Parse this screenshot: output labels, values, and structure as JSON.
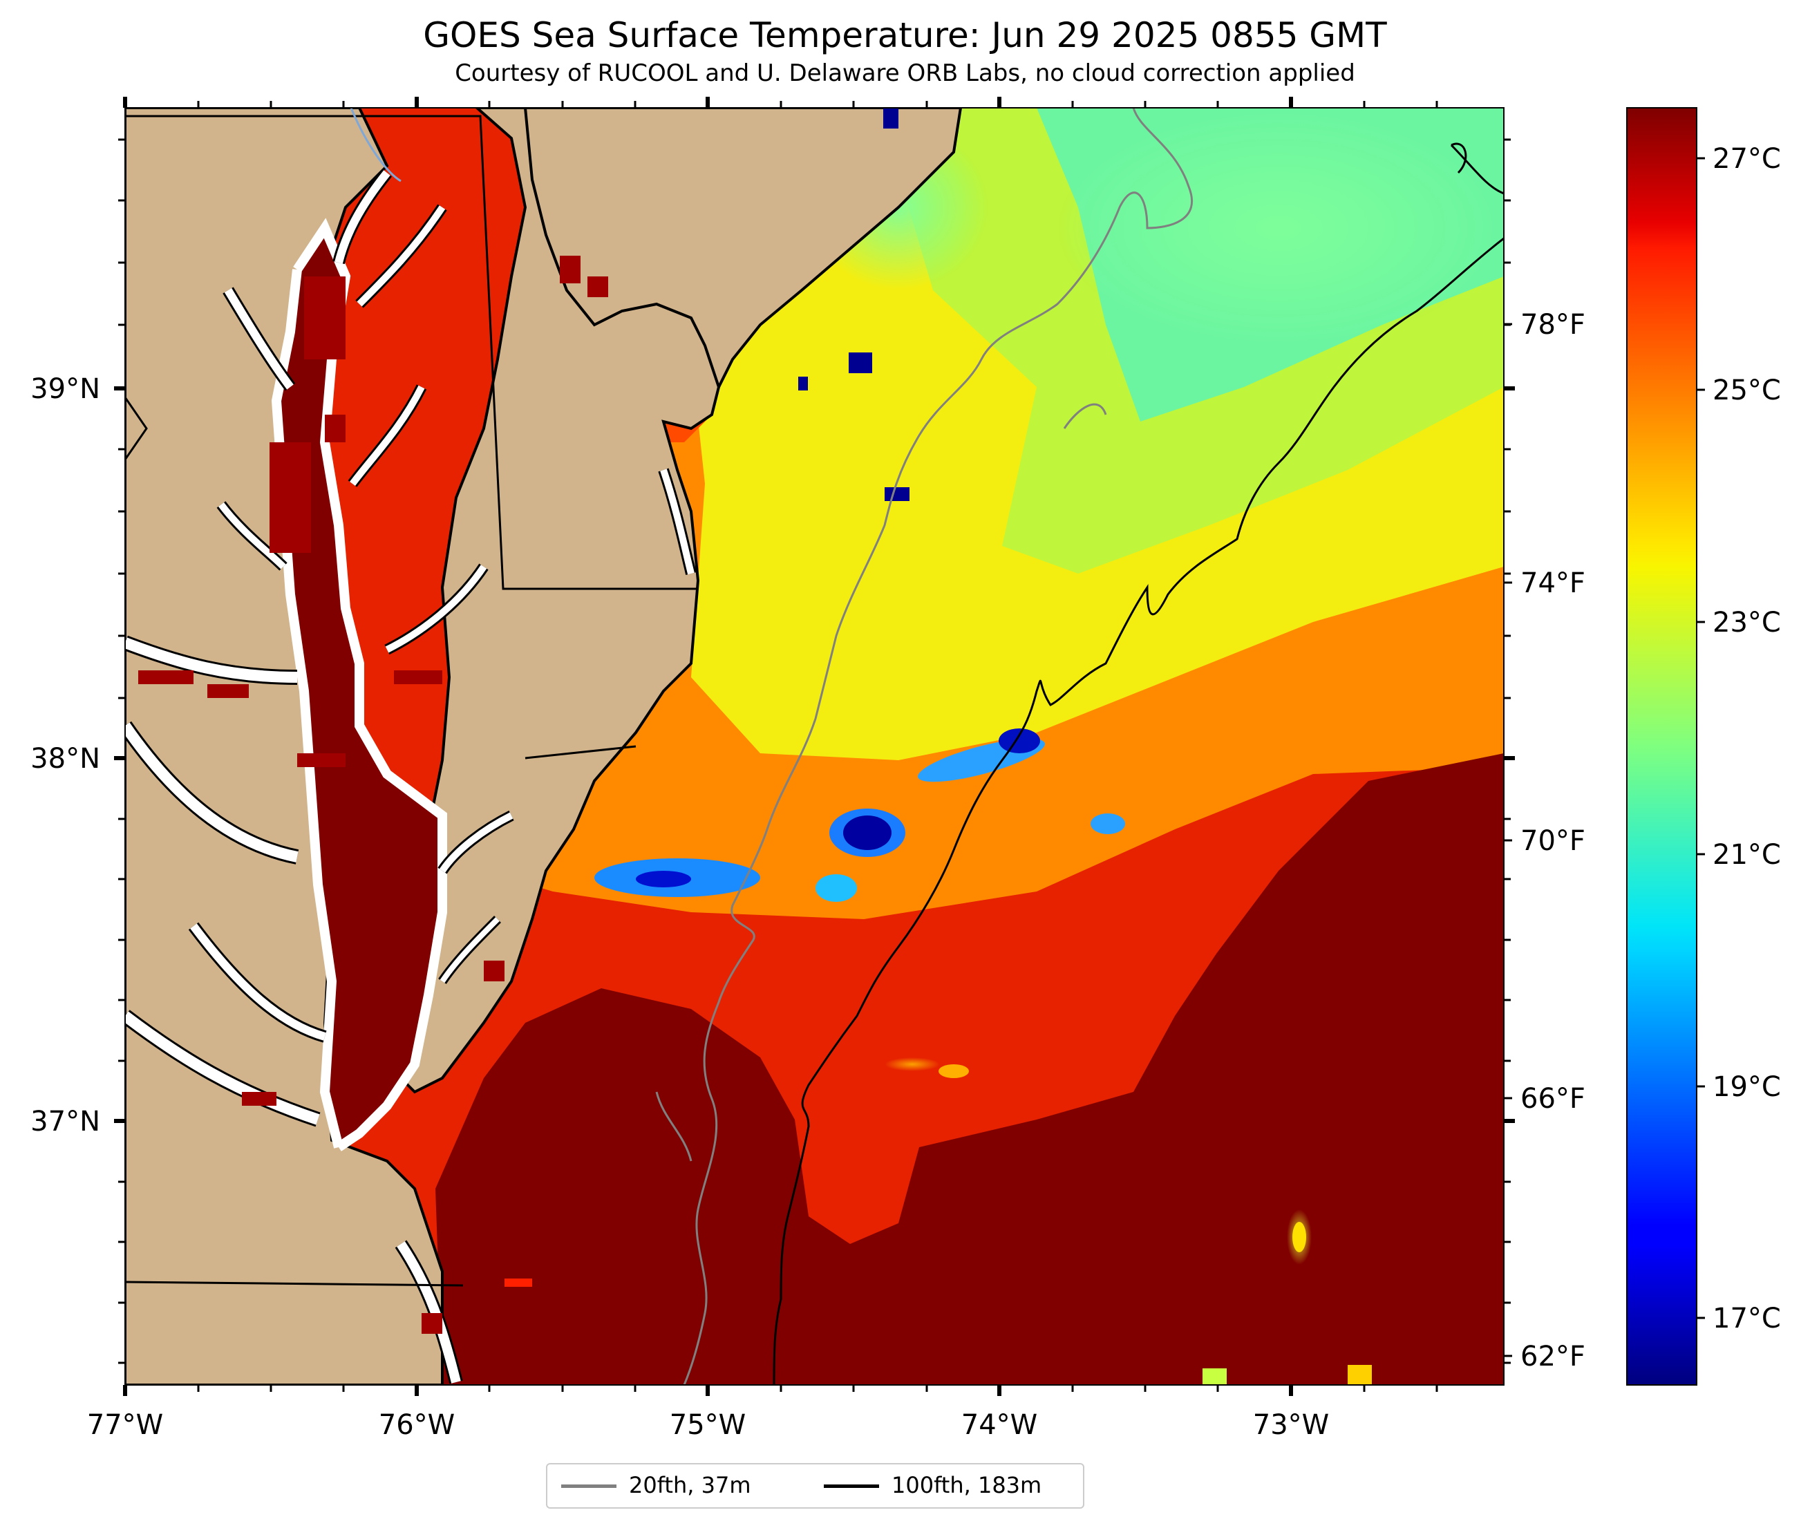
{
  "title": "GOES Sea Surface Temperature: Jun 29 2025 0855 GMT",
  "subtitle": "Courtesy of RUCOOL and U. Delaware ORB Labs, no cloud correction applied",
  "map": {
    "extent": {
      "lon_min": -77.0,
      "lon_max": -72.27,
      "lat_min": 36.31,
      "lat_max": 39.77
    },
    "x_ticks": [
      "77°W",
      "76°W",
      "75°W",
      "74°W",
      "73°W"
    ],
    "y_ticks": [
      "39°N",
      "38°N",
      "37°N"
    ],
    "land_color": "#d2b48c",
    "colormap": "jet"
  },
  "colorbar": {
    "celsius_min": 16.3,
    "celsius_max": 27.6,
    "celsius_ticks": [
      "27°C",
      "25°C",
      "23°C",
      "21°C",
      "19°C",
      "17°C"
    ],
    "fahrenheit_ticks": [
      "78°F",
      "74°F",
      "70°F",
      "66°F",
      "62°F"
    ]
  },
  "legend": [
    {
      "label": "20fth, 37m",
      "color": "#808080"
    },
    {
      "label": "100fth, 183m",
      "color": "#000000"
    }
  ]
}
